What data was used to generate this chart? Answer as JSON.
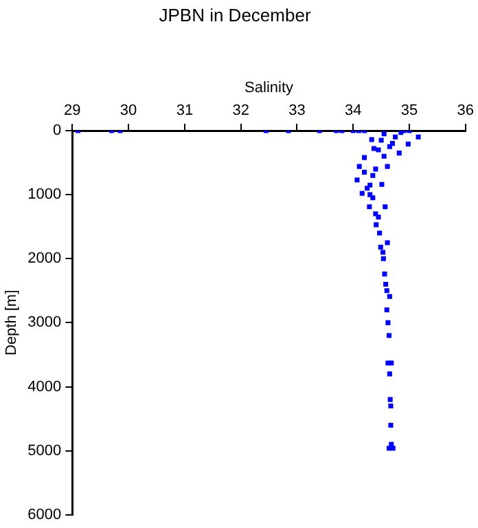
{
  "chart_data": {
    "type": "scatter",
    "title": "JPBN in December",
    "xlabel": "Salinity",
    "ylabel": "Depth [m]",
    "xlim": [
      29,
      36
    ],
    "xticks": [
      29,
      30,
      31,
      32,
      33,
      34,
      35,
      36
    ],
    "ylim": [
      6000,
      0
    ],
    "yticks": [
      0,
      1000,
      2000,
      3000,
      4000,
      5000,
      6000
    ],
    "grid": false,
    "legend": false,
    "marker": "square",
    "series": [
      {
        "color": "#0000ff",
        "x": [
          29.1,
          29.7,
          29.85,
          32.45,
          32.85,
          33.4,
          33.7,
          33.8,
          34.0,
          34.1,
          35.0,
          34.2,
          34.33,
          34.37,
          34.2,
          34.11,
          34.07,
          34.16,
          34.29,
          34.41,
          34.49,
          34.56,
          34.6,
          34.62,
          34.64,
          34.9,
          35.16,
          34.98,
          34.82,
          34.61,
          34.51,
          34.57,
          34.61,
          34.65,
          34.68,
          34.71,
          34.55,
          34.75,
          34.65,
          34.55,
          34.4,
          34.3,
          34.35,
          34.45,
          34.53,
          34.6,
          34.64,
          34.67,
          34.5,
          34.7,
          34.85,
          34.45,
          34.35,
          34.25,
          34.2,
          34.3,
          34.4,
          34.47,
          34.54,
          34.58,
          34.62,
          34.65,
          34.66,
          34.67,
          34.68
        ],
        "values": [
          0,
          0,
          0,
          0,
          0,
          0,
          0,
          0,
          0,
          0,
          0,
          0,
          140,
          280,
          420,
          560,
          770,
          980,
          1190,
          1470,
          1820,
          2240,
          2800,
          3630,
          4960,
          0,
          100,
          210,
          350,
          560,
          840,
          1190,
          1750,
          2590,
          3630,
          4960,
          50,
          100,
          250,
          400,
          600,
          850,
          1050,
          1350,
          1900,
          2500,
          3200,
          4300,
          150,
          200,
          30,
          300,
          700,
          900,
          650,
          1000,
          1300,
          1600,
          2000,
          2400,
          3000,
          3800,
          4200,
          4600,
          4900
        ]
      }
    ]
  }
}
